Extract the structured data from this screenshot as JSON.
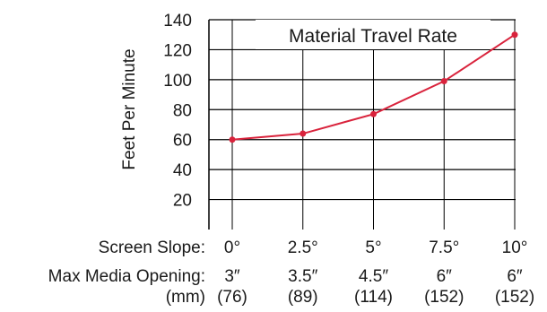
{
  "chart_data": {
    "type": "line",
    "title": "Material Travel Rate",
    "ylabel": "Feet Per Minute",
    "ylim": [
      0,
      140
    ],
    "yticks": [
      20,
      40,
      60,
      80,
      100,
      120,
      140
    ],
    "x": [
      "0°",
      "2.5°",
      "5°",
      "7.5°",
      "10°"
    ],
    "series": [
      {
        "values": [
          60,
          64,
          77,
          99,
          130
        ],
        "color": "#d9233c"
      }
    ],
    "grid": true,
    "row_labels": {
      "screen_slope": "Screen Slope:",
      "max_media_opening": "Max Media Opening:",
      "mm": "(mm)"
    },
    "media_opening_in": [
      "3″",
      "3.5″",
      "4.5″",
      "6″",
      "6″"
    ],
    "media_opening_mm": [
      "(76)",
      "(89)",
      "(114)",
      "(152)",
      "(152)"
    ]
  }
}
